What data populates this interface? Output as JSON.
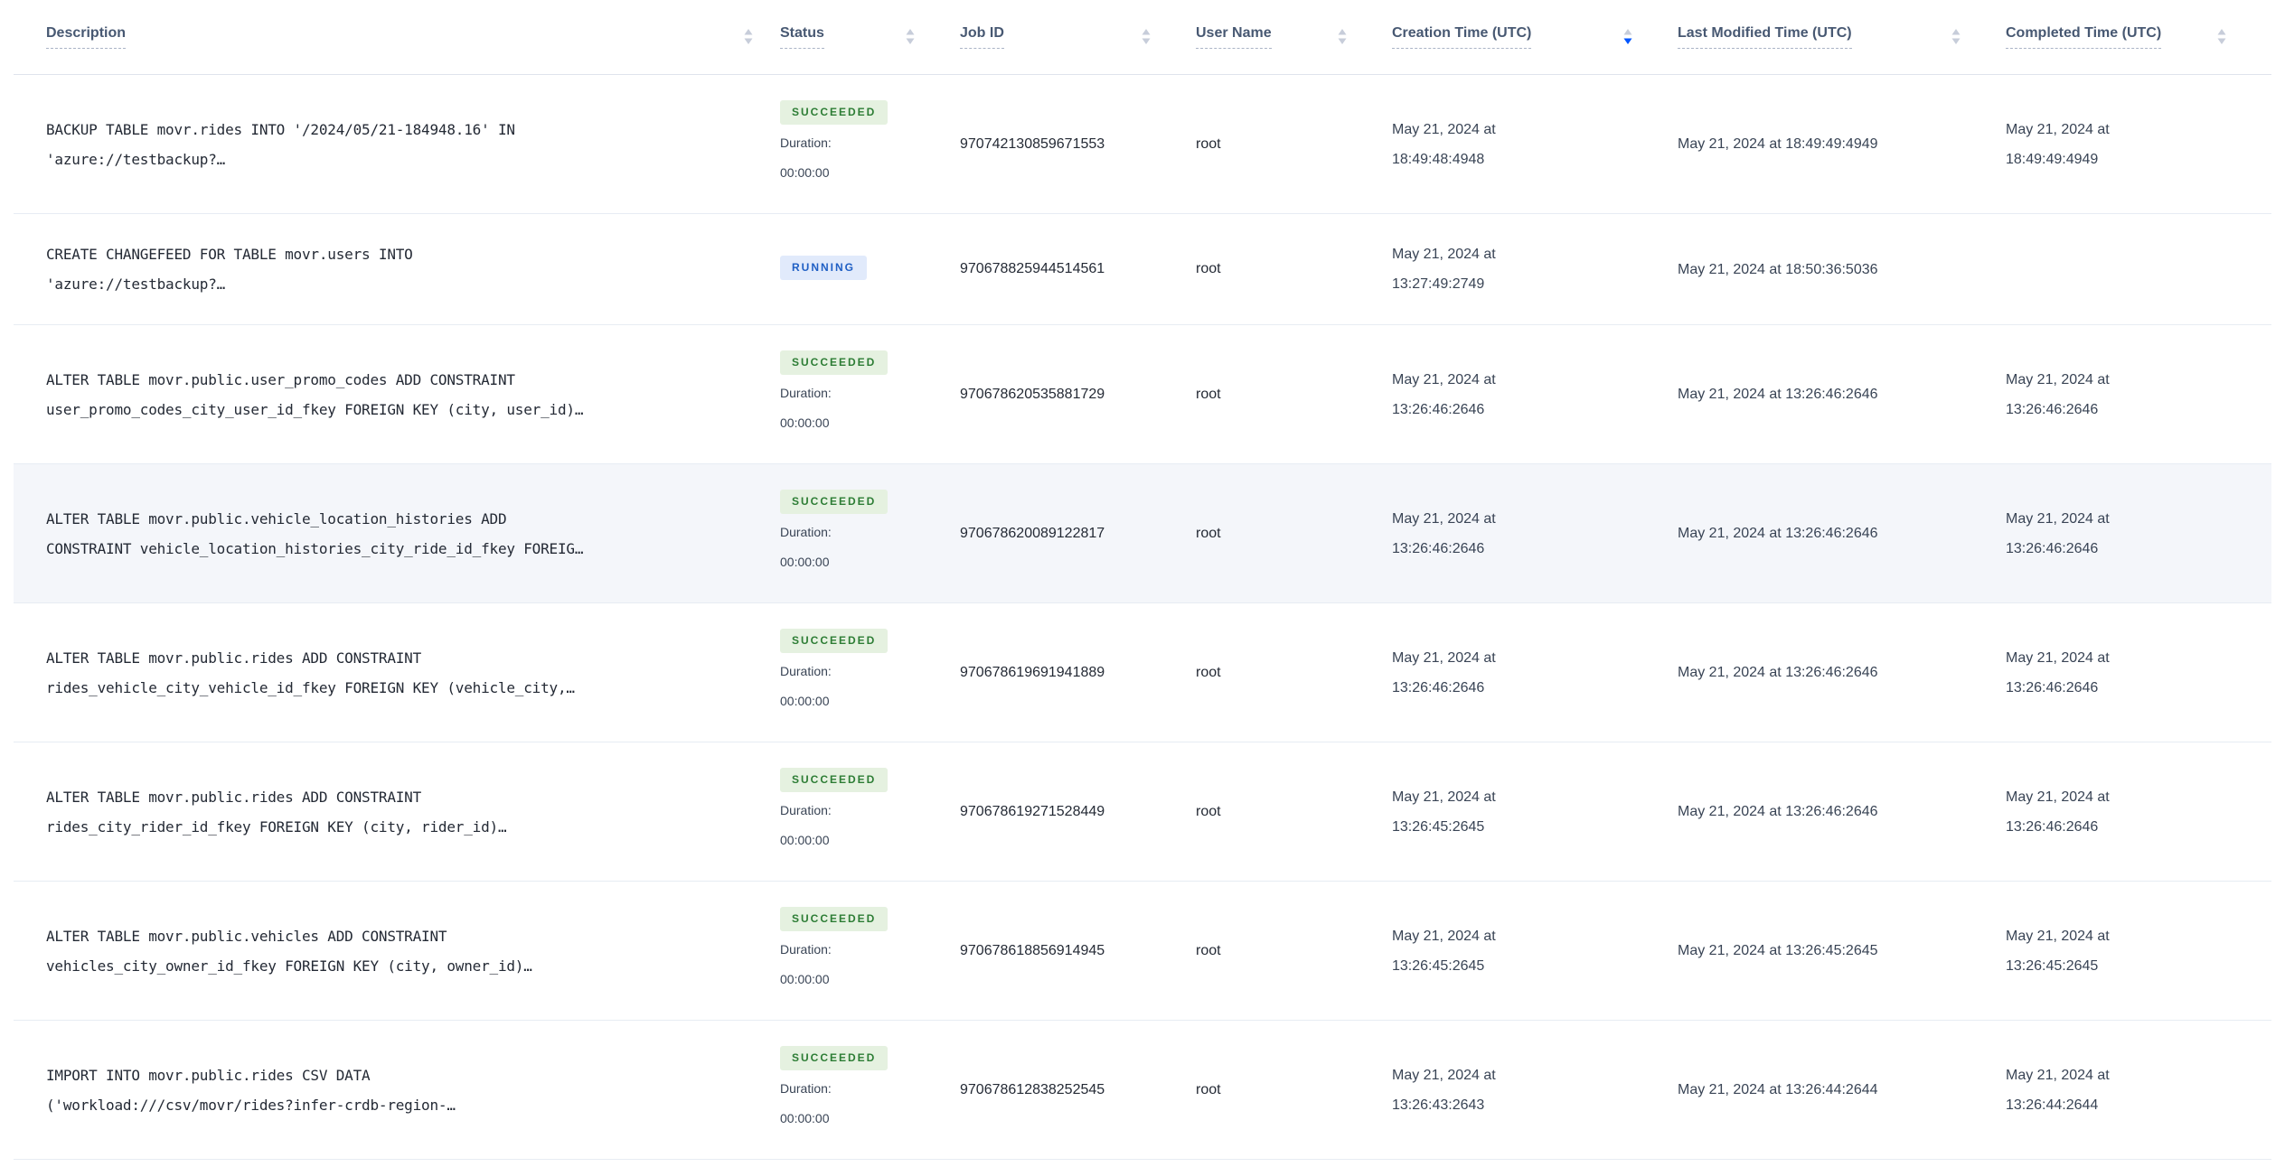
{
  "colors": {
    "header_text": "#475872",
    "body_text": "#394455",
    "mono_text": "#242a35",
    "succeeded_text": "#2d7d35",
    "succeeded_bg": "#e5f1e0",
    "running_text": "#1f5fc4",
    "running_bg": "#e1eafb",
    "sort_active": "#0055ff",
    "row_divider": "#e7ecf3",
    "row_hover_bg": "#f4f6fa"
  },
  "header": {
    "columns": [
      {
        "label": "Description",
        "sort": "none"
      },
      {
        "label": "Status",
        "sort": "none"
      },
      {
        "label": "Job ID",
        "sort": "none"
      },
      {
        "label": "User Name",
        "sort": "none"
      },
      {
        "label": "Creation Time (UTC)",
        "sort": "desc"
      },
      {
        "label": "Last Modified Time (UTC)",
        "sort": "none"
      },
      {
        "label": "Completed Time (UTC)",
        "sort": "none"
      }
    ]
  },
  "rows": [
    {
      "description_lines": [
        "BACKUP TABLE movr.rides INTO '/2024/05/21-184948.16' IN",
        "'azure://testbackup?…"
      ],
      "status": "SUCCEEDED",
      "duration_label": "Duration:",
      "duration": "00:00:00",
      "job_id": "970742130859671553",
      "user_name": "root",
      "creation_time_lines": [
        "May 21, 2024 at",
        "18:49:48:4948"
      ],
      "last_modified_time": "May 21, 2024 at 18:49:49:4949",
      "completed_time_lines": [
        "May 21, 2024 at",
        "18:49:49:4949"
      ],
      "highlighted": false
    },
    {
      "description_lines": [
        "CREATE CHANGEFEED FOR TABLE movr.users INTO",
        "'azure://testbackup?…"
      ],
      "status": "RUNNING",
      "duration_label": null,
      "duration": null,
      "job_id": "970678825944514561",
      "user_name": "root",
      "creation_time_lines": [
        "May 21, 2024 at",
        "13:27:49:2749"
      ],
      "last_modified_time": "May 21, 2024 at 18:50:36:5036",
      "completed_time_lines": [],
      "highlighted": false
    },
    {
      "description_lines": [
        "ALTER TABLE movr.public.user_promo_codes ADD CONSTRAINT",
        "user_promo_codes_city_user_id_fkey FOREIGN KEY (city, user_id)…"
      ],
      "status": "SUCCEEDED",
      "duration_label": "Duration:",
      "duration": "00:00:00",
      "job_id": "970678620535881729",
      "user_name": "root",
      "creation_time_lines": [
        "May 21, 2024 at",
        "13:26:46:2646"
      ],
      "last_modified_time": "May 21, 2024 at 13:26:46:2646",
      "completed_time_lines": [
        "May 21, 2024 at",
        "13:26:46:2646"
      ],
      "highlighted": false
    },
    {
      "description_lines": [
        "ALTER TABLE movr.public.vehicle_location_histories ADD",
        "CONSTRAINT vehicle_location_histories_city_ride_id_fkey FOREIG…"
      ],
      "status": "SUCCEEDED",
      "duration_label": "Duration:",
      "duration": "00:00:00",
      "job_id": "970678620089122817",
      "user_name": "root",
      "creation_time_lines": [
        "May 21, 2024 at",
        "13:26:46:2646"
      ],
      "last_modified_time": "May 21, 2024 at 13:26:46:2646",
      "completed_time_lines": [
        "May 21, 2024 at",
        "13:26:46:2646"
      ],
      "highlighted": true
    },
    {
      "description_lines": [
        "ALTER TABLE movr.public.rides ADD CONSTRAINT",
        "rides_vehicle_city_vehicle_id_fkey FOREIGN KEY (vehicle_city,…"
      ],
      "status": "SUCCEEDED",
      "duration_label": "Duration:",
      "duration": "00:00:00",
      "job_id": "970678619691941889",
      "user_name": "root",
      "creation_time_lines": [
        "May 21, 2024 at",
        "13:26:46:2646"
      ],
      "last_modified_time": "May 21, 2024 at 13:26:46:2646",
      "completed_time_lines": [
        "May 21, 2024 at",
        "13:26:46:2646"
      ],
      "highlighted": false
    },
    {
      "description_lines": [
        "ALTER TABLE movr.public.rides ADD CONSTRAINT",
        "rides_city_rider_id_fkey FOREIGN KEY (city, rider_id)…"
      ],
      "status": "SUCCEEDED",
      "duration_label": "Duration:",
      "duration": "00:00:00",
      "job_id": "970678619271528449",
      "user_name": "root",
      "creation_time_lines": [
        "May 21, 2024 at",
        "13:26:45:2645"
      ],
      "last_modified_time": "May 21, 2024 at 13:26:46:2646",
      "completed_time_lines": [
        "May 21, 2024 at",
        "13:26:46:2646"
      ],
      "highlighted": false
    },
    {
      "description_lines": [
        "ALTER TABLE movr.public.vehicles ADD CONSTRAINT",
        "vehicles_city_owner_id_fkey FOREIGN KEY (city, owner_id)…"
      ],
      "status": "SUCCEEDED",
      "duration_label": "Duration:",
      "duration": "00:00:00",
      "job_id": "970678618856914945",
      "user_name": "root",
      "creation_time_lines": [
        "May 21, 2024 at",
        "13:26:45:2645"
      ],
      "last_modified_time": "May 21, 2024 at 13:26:45:2645",
      "completed_time_lines": [
        "May 21, 2024 at",
        "13:26:45:2645"
      ],
      "highlighted": false
    },
    {
      "description_lines": [
        "IMPORT INTO movr.public.rides CSV DATA",
        "('workload:///csv/movr/rides?infer-crdb-region-…"
      ],
      "status": "SUCCEEDED",
      "duration_label": "Duration:",
      "duration": "00:00:00",
      "job_id": "970678612838252545",
      "user_name": "root",
      "creation_time_lines": [
        "May 21, 2024 at",
        "13:26:43:2643"
      ],
      "last_modified_time": "May 21, 2024 at 13:26:44:2644",
      "completed_time_lines": [
        "May 21, 2024 at",
        "13:26:44:2644"
      ],
      "highlighted": false
    }
  ]
}
